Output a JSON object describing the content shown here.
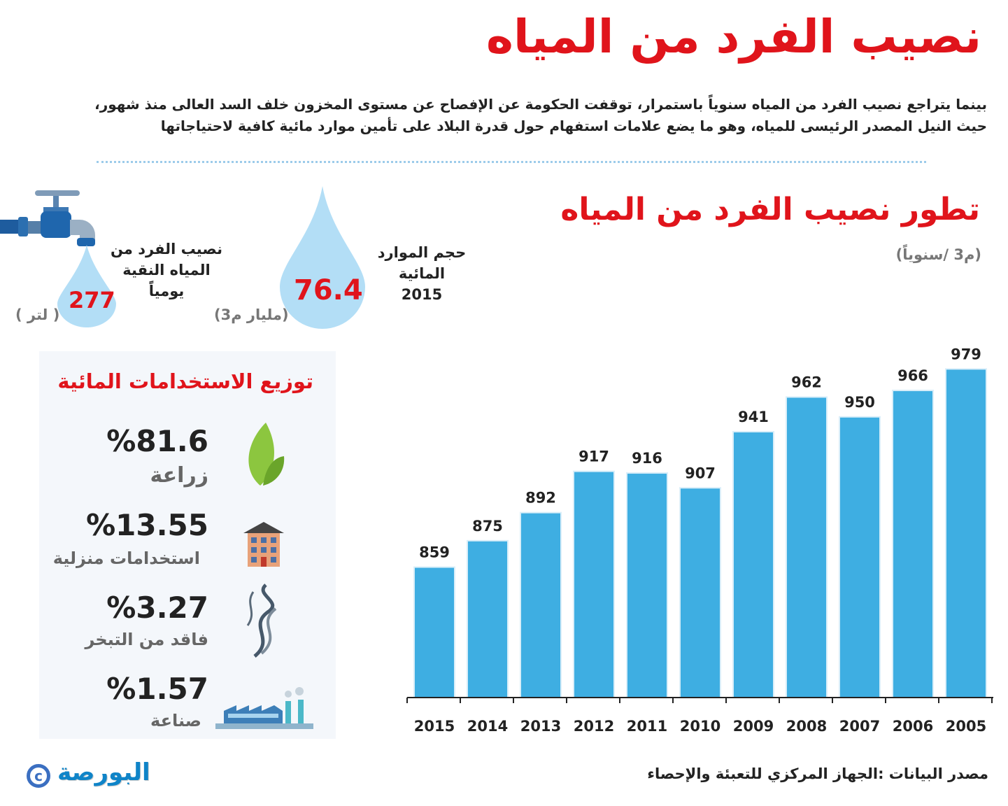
{
  "header": {
    "title": "نصيب الفرد من المياه",
    "intro_line1": "بينما يتراجع نصيب الفرد من المياه سنوياً باستمرار، توقفت الحكومة عن الإفصاح عن مستوى المخزون خلف السد العالى منذ شهور،",
    "intro_line2": "حيث النيل المصدر الرئيسى للمياه، وهو ما يضع علامات استفهام حول قدرة البلاد على تأمين موارد مائية كافية لاحتياجاتها"
  },
  "stats": {
    "daily": {
      "label_1": "نصيب الفرد من",
      "label_2": "المياه النقية",
      "label_3": "يومياً",
      "value": "277",
      "unit": "( لتر )"
    },
    "resources": {
      "label_1": "حجم الموارد",
      "label_2": "المائية",
      "label_3": "2015",
      "value": "76.4",
      "unit": "(مليار م3)"
    }
  },
  "uses": {
    "title": "توزيع الاستخدامات المائية",
    "items": [
      {
        "pct": "%81.6",
        "label": "زراعة",
        "icon": "leaf-icon"
      },
      {
        "pct": "%13.55",
        "label": "استخدامات منزلية",
        "icon": "building-icon"
      },
      {
        "pct": "%3.27",
        "label": "فاقد من التبخر",
        "icon": "smoke-icon"
      },
      {
        "pct": "%1.57",
        "label": "صناعة",
        "icon": "factory-icon"
      }
    ]
  },
  "chart_data": {
    "type": "bar",
    "title": "تطور نصيب الفرد من المياه",
    "ylabel": "(م3 /سنوياً)",
    "categories": [
      "2015",
      "2014",
      "2013",
      "2012",
      "2011",
      "2010",
      "2009",
      "2008",
      "2007",
      "2006",
      "2005"
    ],
    "values": [
      859,
      875,
      892,
      917,
      916,
      907,
      941,
      962,
      950,
      966,
      979
    ],
    "ylim": [
      780,
      985
    ],
    "bar_color": "#3eaee2",
    "grid": false
  },
  "footer": {
    "source": "مصدر البيانات :الجهاز المركزي للتعبئة والإحصاء",
    "logo": "البورصة"
  }
}
